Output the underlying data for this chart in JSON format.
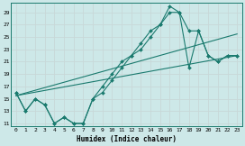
{
  "xlabel": "Humidex (Indice chaleur)",
  "bg_color": "#cde8e8",
  "line_color": "#1a7a6e",
  "grid_color": "#b8d8d8",
  "xlim": [
    -0.5,
    23.5
  ],
  "ylim": [
    10.5,
    30.5
  ],
  "xticks": [
    0,
    1,
    2,
    3,
    4,
    5,
    6,
    7,
    8,
    9,
    10,
    11,
    12,
    13,
    14,
    15,
    16,
    17,
    18,
    19,
    20,
    21,
    22,
    23
  ],
  "yticks": [
    11,
    13,
    15,
    17,
    19,
    21,
    23,
    25,
    27,
    29
  ],
  "line1_x": [
    0,
    1,
    2,
    3,
    4,
    5,
    6,
    7,
    8,
    9,
    10,
    11,
    12,
    13,
    14,
    15,
    16,
    17,
    18,
    19,
    20,
    21,
    22,
    23
  ],
  "line1_y": [
    16,
    13,
    15,
    14,
    11,
    12,
    11,
    11,
    15,
    16,
    18,
    20,
    22,
    24,
    26,
    27,
    29,
    29,
    20,
    26,
    22,
    21,
    22,
    22
  ],
  "line2_x": [
    0,
    1,
    2,
    3,
    4,
    5,
    6,
    7,
    8,
    9,
    10,
    11,
    12,
    13,
    14,
    15,
    16,
    17,
    18,
    19,
    20,
    21,
    22,
    23
  ],
  "line2_y": [
    16,
    13,
    15,
    14,
    11,
    12,
    11,
    11,
    15,
    17,
    19,
    21,
    22,
    23,
    25,
    27,
    30,
    29,
    26,
    26,
    22,
    21,
    22,
    22
  ],
  "line3_x": [
    0,
    23
  ],
  "line3_y": [
    15.5,
    22
  ],
  "line4_x": [
    0,
    23
  ],
  "line4_y": [
    15.5,
    25.5
  ]
}
